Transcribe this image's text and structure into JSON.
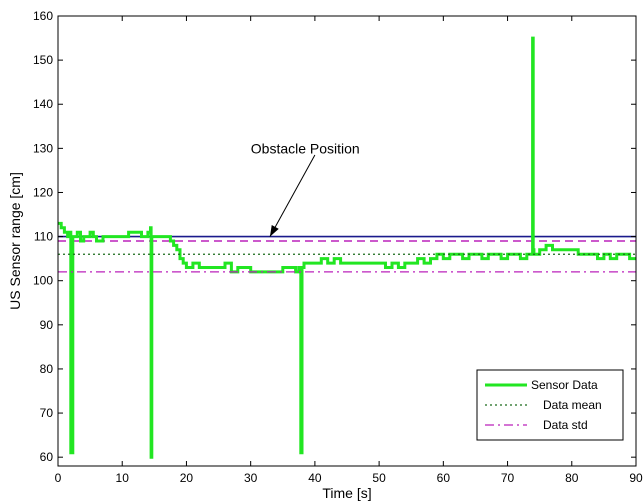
{
  "chart_data": {
    "type": "line",
    "xlabel": "Time  [s]",
    "ylabel": "US Sensor range [cm]",
    "xlim": [
      0,
      90
    ],
    "ylim": [
      58,
      160
    ],
    "x_ticks": [
      0,
      10,
      20,
      30,
      40,
      50,
      60,
      70,
      80,
      90
    ],
    "y_ticks": [
      60,
      70,
      80,
      90,
      100,
      110,
      120,
      130,
      140,
      150,
      160
    ],
    "x_tick_labels": [
      "0",
      "10",
      "20",
      "30",
      "40",
      "50",
      "60",
      "70",
      "80",
      "90"
    ],
    "y_tick_labels": [
      "60",
      "70",
      "80",
      "90",
      "100",
      "110",
      "120",
      "130",
      "140",
      "150",
      "160"
    ],
    "grid": false,
    "legend_position": "lower-right",
    "annotation": {
      "text": "Obstacle Position",
      "points_to": [
        33,
        110
      ]
    },
    "series": [
      {
        "name": "Sensor Data",
        "style": "solid",
        "color": "#22e622",
        "x": [
          0,
          0.5,
          1.0,
          1.5,
          1.8,
          2.0,
          2.3,
          2.6,
          3,
          3.5,
          4,
          4.5,
          5,
          5.5,
          6,
          7,
          8,
          9,
          10,
          11,
          12,
          13,
          14,
          14.4,
          14.5,
          14.6,
          14.8,
          15,
          16,
          17,
          17.5,
          18,
          18.5,
          19,
          19.5,
          20,
          21,
          22,
          23,
          24,
          25,
          26,
          27,
          28,
          29,
          30,
          31,
          32,
          33,
          34,
          35,
          36,
          37,
          37.5,
          37.8,
          38.0,
          38.3,
          39,
          40,
          41,
          42,
          43,
          44,
          45,
          46,
          47,
          48,
          49,
          50,
          51,
          52,
          53,
          54,
          55,
          56,
          57,
          58,
          59,
          60,
          61,
          62,
          63,
          64,
          65,
          66,
          67,
          68,
          69,
          70,
          71,
          72,
          73,
          73.8,
          73.9,
          74.0,
          74.1,
          74.3,
          75,
          76,
          77,
          78,
          79,
          80,
          81,
          82,
          83,
          84,
          85,
          86,
          87,
          88,
          89,
          90
        ],
        "y": [
          113,
          112,
          111,
          110,
          111,
          61,
          110,
          110,
          111,
          109,
          110,
          110,
          111,
          110,
          109,
          110,
          110,
          110,
          110,
          111,
          111,
          110,
          111,
          112,
          60,
          110,
          110,
          110,
          110,
          110,
          109,
          108,
          107,
          105,
          104,
          103,
          104,
          103,
          103,
          103,
          103,
          104,
          102,
          103,
          103,
          102,
          102,
          102,
          102,
          102,
          103,
          103,
          102,
          103,
          61,
          103,
          104,
          104,
          104,
          105,
          104,
          105,
          104,
          104,
          104,
          104,
          104,
          104,
          104,
          103,
          104,
          103,
          104,
          104,
          105,
          104,
          105,
          106,
          105,
          106,
          106,
          105,
          106,
          106,
          105,
          106,
          106,
          105,
          106,
          106,
          105,
          106,
          106,
          155,
          107,
          106,
          106,
          107,
          108,
          107,
          107,
          107,
          107,
          106,
          106,
          106,
          105,
          106,
          105,
          106,
          106,
          105,
          105
        ]
      },
      {
        "name": "Data mean",
        "style": "dotted",
        "color": "#1a6b1a",
        "constant": 106
      },
      {
        "name": "Data std",
        "style": "dash-dot",
        "color": "#bb22bb",
        "constant": 102
      }
    ],
    "reference_lines": [
      {
        "style": "solid",
        "color": "#1a1a8c",
        "constant": 110
      },
      {
        "style": "dashed",
        "color": "#bb22bb",
        "constant": 109
      }
    ]
  }
}
